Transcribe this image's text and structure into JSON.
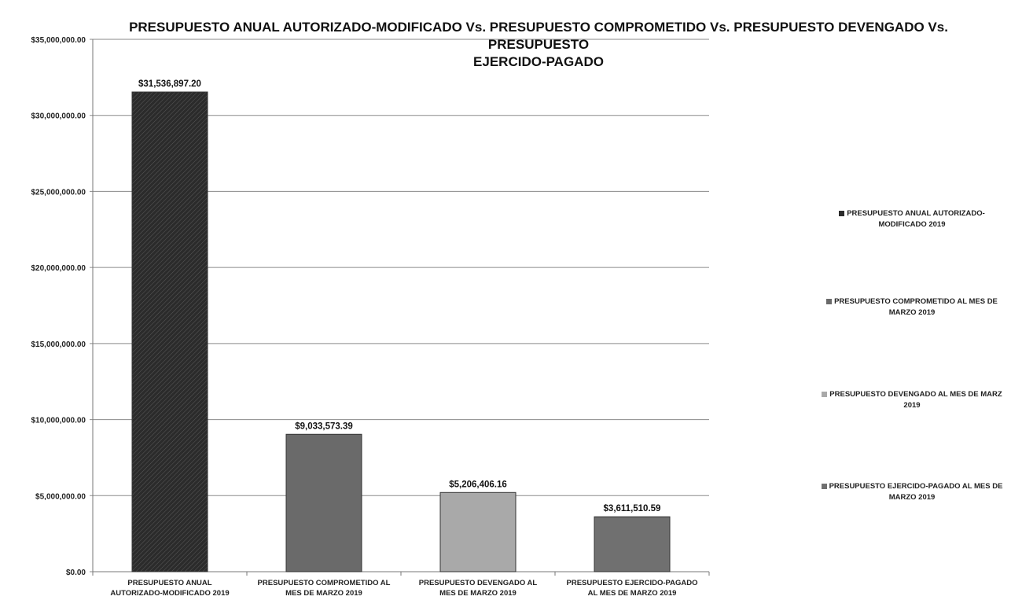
{
  "chart_data": {
    "type": "bar",
    "title_line1": "PRESUPUESTO ANUAL AUTORIZADO-MODIFICADO Vs. PRESUPUESTO COMPROMETIDO Vs. PRESUPUESTO DEVENGADO Vs. PRESUPUESTO",
    "title_line2": "EJERCIDO-PAGADO",
    "categories": [
      [
        "PRESUPUESTO ANUAL",
        "AUTORIZADO-MODIFICADO 2019"
      ],
      [
        "PRESUPUESTO COMPROMETIDO AL",
        "MES DE MARZO 2019"
      ],
      [
        "PRESUPUESTO DEVENGADO AL",
        "MES DE MARZO 2019"
      ],
      [
        "PRESUPUESTO EJERCIDO-PAGADO",
        "AL MES DE MARZO 2019"
      ]
    ],
    "values": [
      31536897.2,
      9033573.39,
      5206406.16,
      3611510.59
    ],
    "value_labels": [
      "$31,536,897.20",
      "$9,033,573.39",
      "$5,206,406.16",
      "$3,611,510.59"
    ],
    "ylim": [
      0,
      35000000
    ],
    "yticks": [
      0,
      5000000,
      10000000,
      15000000,
      20000000,
      25000000,
      30000000,
      35000000
    ],
    "ytick_labels": [
      "$0.00",
      "$5,000,000.00",
      "$10,000,000.00",
      "$15,000,000.00",
      "$20,000,000.00",
      "$25,000,000.00",
      "$30,000,000.00",
      "$35,000,000.00"
    ],
    "grid": true,
    "legend_position": "right",
    "legend": [
      [
        "PRESUPUESTO ANUAL AUTORIZADO-",
        "MODIFICADO 2019"
      ],
      [
        "PRESUPUESTO COMPROMETIDO AL MES DE",
        "MARZO 2019"
      ],
      [
        "PRESUPUESTO DEVENGADO AL MES DE MARZ",
        "2019"
      ],
      [
        "PRESUPUESTO EJERCIDO-PAGADO AL MES DE",
        "MARZO 2019"
      ]
    ],
    "colors": [
      "#2b2b2b",
      "#6a6a6a",
      "#a9a9a9",
      "#707070"
    ]
  }
}
